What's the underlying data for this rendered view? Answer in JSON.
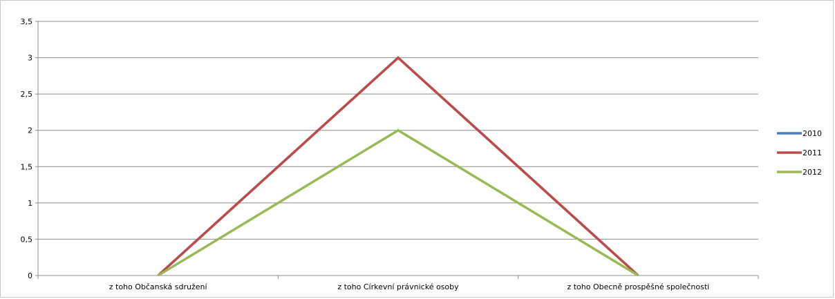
{
  "chart_data": {
    "type": "line",
    "categories": [
      "z toho Občanská sdružení",
      "z toho Církevní právnické osoby",
      "z toho Obecně prospěšné společnosti"
    ],
    "y_tick_labels": [
      "0",
      "0,5",
      "1",
      "1,5",
      "2",
      "2,5",
      "3",
      "3,5"
    ],
    "ylim": [
      0,
      3.5
    ],
    "grid": true,
    "legend_position": "right",
    "series": [
      {
        "name": "2010",
        "color": "#4a7ebb",
        "values": [
          0,
          3,
          0
        ]
      },
      {
        "name": "2011",
        "color": "#be4b48",
        "values": [
          0,
          3,
          0
        ]
      },
      {
        "name": "2012",
        "color": "#98b954",
        "values": [
          0,
          2,
          0
        ]
      }
    ]
  }
}
